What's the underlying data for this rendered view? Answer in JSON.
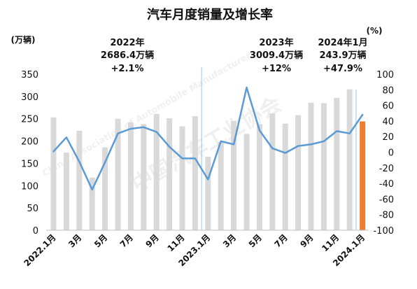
{
  "chart_data": {
    "type": "bar",
    "title": "汽车月度销量及增长率",
    "ylabel_left": "(万辆)",
    "ylabel_right": "(%)",
    "x_tick_labels": [
      "2022.1月",
      "",
      "3月",
      "",
      "5月",
      "",
      "7月",
      "",
      "9月",
      "",
      "11月",
      "",
      "2023.1月",
      "",
      "3月",
      "",
      "5月",
      "",
      "7月",
      "",
      "9月",
      "",
      "11月",
      "",
      "2024.1月"
    ],
    "ylim_left": [
      0,
      350
    ],
    "yticks_left": [
      0,
      50,
      100,
      150,
      200,
      250,
      300,
      350
    ],
    "ylim_right": [
      -100,
      100
    ],
    "yticks_right": [
      -100,
      -80,
      -60,
      -40,
      -20,
      0,
      20,
      40,
      60,
      80,
      100
    ],
    "grid": false,
    "series": [
      {
        "type": "bar",
        "axis": "left",
        "values": [
          253,
          174,
          223,
          118,
          186,
          250,
          242,
          238,
          261,
          251,
          233,
          256,
          165,
          198,
          245,
          216,
          238,
          262,
          239,
          258,
          286,
          285,
          297,
          316,
          244
        ],
        "color": "#d9d9d9",
        "highlight_index": 24,
        "highlight_color": "#ed7d31"
      },
      {
        "type": "line",
        "axis": "right",
        "values": [
          1,
          19,
          -12,
          -48,
          -13,
          24,
          30,
          32,
          26,
          7,
          -8,
          -8,
          -35,
          14,
          10,
          83,
          28,
          5,
          -1,
          8,
          10,
          14,
          27,
          24,
          48
        ],
        "color": "#5b9bd5"
      }
    ],
    "separator_color": "#9dc3e6",
    "annotations": [
      {
        "lines": [
          "2022年",
          "2686.4万辆",
          "+2.1%"
        ]
      },
      {
        "lines": [
          "2023年",
          "3009.4万辆",
          "+12%"
        ]
      },
      {
        "lines": [
          "2024年1月",
          "243.9万辆",
          "+47.9%"
        ]
      }
    ]
  },
  "watermark": {
    "text_cn": "中国汽车工业协会",
    "text_en": "China Association of Automobile Manufacturers"
  }
}
